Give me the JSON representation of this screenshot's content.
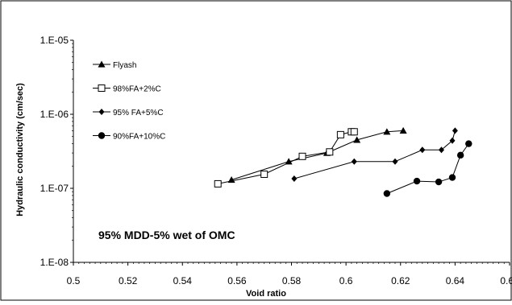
{
  "chart_data": {
    "type": "scatter",
    "xlabel": "Void ratio",
    "ylabel": "Hydraulic conductivity (cm/sec)",
    "annotation": "95% MDD-5% wet of OMC",
    "xlim": [
      0.5,
      0.66
    ],
    "ylim": [
      1e-08,
      1e-05
    ],
    "yscale": "log",
    "grid": false,
    "legend_position": "top-left",
    "x_ticks": [
      "0.5",
      "0.52",
      "0.54",
      "0.56",
      "0.58",
      "0.6",
      "0.62",
      "0.64",
      "0.66"
    ],
    "y_ticks": [
      "1.E-08",
      "1.E-07",
      "1.E-06",
      "1.E-05"
    ],
    "series": [
      {
        "name": "Flyash",
        "marker": "triangle",
        "x": [
          0.558,
          0.579,
          0.593,
          0.604,
          0.615,
          0.621
        ],
        "y": [
          1.3e-07,
          2.3e-07,
          3e-07,
          4.5e-07,
          5.8e-07,
          6e-07
        ]
      },
      {
        "name": "98%FA+2%C",
        "marker": "open-square",
        "x": [
          0.553,
          0.57,
          0.584,
          0.594,
          0.598,
          0.602,
          0.603
        ],
        "y": [
          1.15e-07,
          1.55e-07,
          2.7e-07,
          3.1e-07,
          5.3e-07,
          5.8e-07,
          5.8e-07
        ]
      },
      {
        "name": "95% FA+5%C",
        "marker": "diamond",
        "x": [
          0.581,
          0.603,
          0.618,
          0.628,
          0.635,
          0.639,
          0.64
        ],
        "y": [
          1.35e-07,
          2.3e-07,
          2.3e-07,
          3.3e-07,
          3.3e-07,
          4.4e-07,
          6e-07
        ]
      },
      {
        "name": "90%FA+10%C",
        "marker": "circle",
        "x": [
          0.615,
          0.626,
          0.634,
          0.639,
          0.642,
          0.645
        ],
        "y": [
          8.5e-08,
          1.25e-07,
          1.22e-07,
          1.4e-07,
          2.8e-07,
          4e-07
        ]
      }
    ]
  }
}
